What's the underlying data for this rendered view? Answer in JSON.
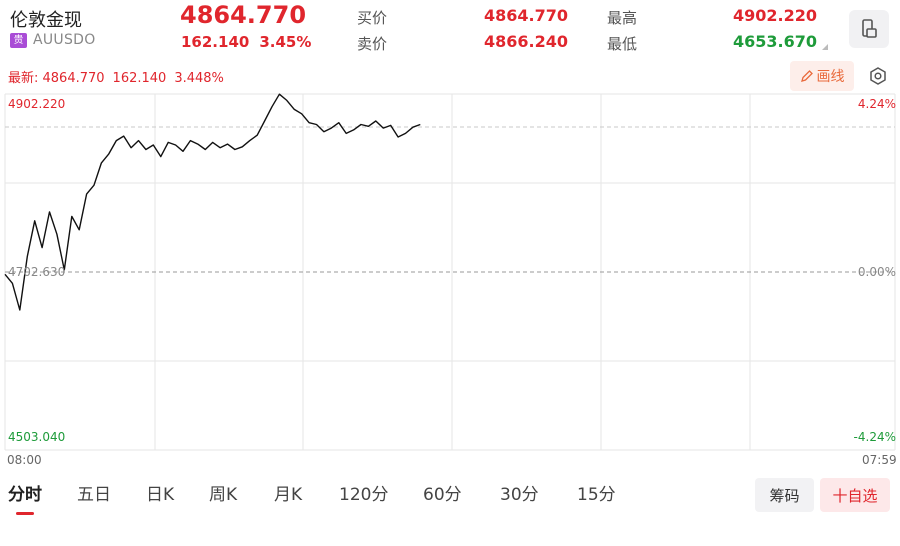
{
  "header": {
    "name": "伦敦金现",
    "tag": "贵",
    "code": "AUUSDO",
    "price": "4864.770",
    "change": "162.140",
    "change_pct": "3.45%"
  },
  "quotes": {
    "bid_label": "买价",
    "bid": "4864.770",
    "ask_label": "卖价",
    "ask": "4866.240",
    "high_label": "最高",
    "high": "4902.220",
    "low_label": "最低",
    "low": "4653.670"
  },
  "latest_bar": {
    "label": "最新: 4864.770",
    "change": "162.140",
    "change_pct": "3.448%",
    "draw_label": "画线"
  },
  "colors": {
    "up": "#e0262d",
    "down": "#1e9b3a",
    "line": "#111111",
    "grid": "#e6e6e6"
  },
  "chart_data": {
    "type": "line",
    "y_top_label": "4902.220",
    "y_mid_label": "4702.630",
    "y_bottom_label": "4503.040",
    "pct_top_label": "4.24%",
    "pct_mid_label": "0.00%",
    "pct_bottom_label": "-4.24%",
    "x_start_label": "08:00",
    "x_end_label": "07:59",
    "ylim": [
      4503.04,
      4902.22
    ],
    "xlim": [
      0,
      120
    ],
    "series": [
      {
        "x": [
          0,
          1,
          2,
          3,
          4,
          5,
          6,
          7,
          8,
          9,
          10,
          11,
          12,
          13,
          14,
          15,
          16,
          17,
          18,
          19,
          20,
          21,
          22,
          23,
          24,
          25,
          26,
          27,
          28,
          29,
          30,
          31,
          32,
          33,
          34,
          35,
          36,
          37,
          38,
          39,
          40,
          41,
          42,
          43,
          44,
          45,
          46,
          47,
          48,
          49,
          50,
          51,
          52,
          53,
          54,
          55,
          56
        ],
        "y": [
          4700,
          4690,
          4660,
          4720,
          4760,
          4730,
          4770,
          4745,
          4705,
          4765,
          4750,
          4790,
          4800,
          4825,
          4835,
          4850,
          4855,
          4842,
          4850,
          4840,
          4845,
          4832,
          4848,
          4845,
          4838,
          4850,
          4846,
          4840,
          4848,
          4842,
          4846,
          4840,
          4843,
          4850,
          4856,
          4872,
          4888,
          4902,
          4895,
          4885,
          4880,
          4870,
          4868,
          4860,
          4864,
          4870,
          4858,
          4862,
          4868,
          4866,
          4872,
          4864,
          4867,
          4854,
          4858,
          4865,
          4868
        ]
      }
    ]
  },
  "tabs": [
    "分时",
    "五日",
    "日K",
    "周K",
    "月K",
    "120分",
    "60分",
    "30分",
    "15分"
  ],
  "buttons": {
    "chips": "筹码",
    "favorite": "十自选"
  }
}
